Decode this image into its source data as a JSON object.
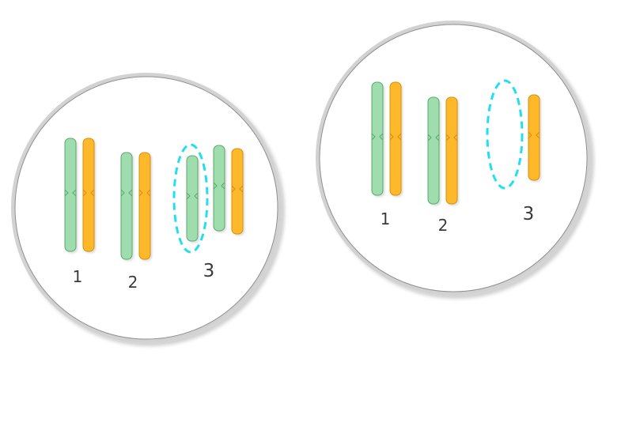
{
  "cell_a": {
    "labels": [
      "1",
      "2",
      "3"
    ]
  },
  "cell_b": {
    "labels": [
      "1",
      "2",
      "3"
    ]
  },
  "colors": {
    "homolog_green_fill": "#9fddae",
    "homolog_green_stroke": "#5aa86c",
    "homolog_orange_fill": "#fdb92c",
    "homolog_orange_stroke": "#d98c10",
    "highlight_dash": "#22dff0",
    "cell_border": "#cfcfcf",
    "cell_inner_border": "#8f8f8f",
    "label_text": "#3a3a3a"
  }
}
